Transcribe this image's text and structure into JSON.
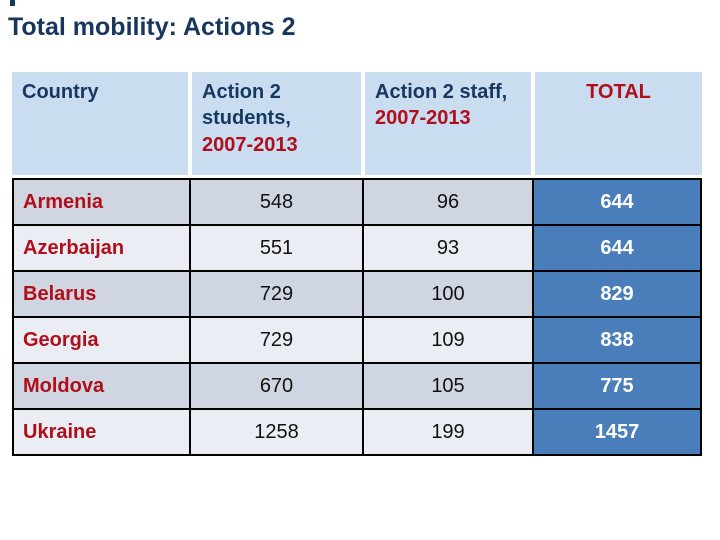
{
  "title": "Total mobility: Actions 2",
  "colors": {
    "title_navy": "#17375E",
    "accent_red": "#B00F1A",
    "header_bg": "#C9DCF0",
    "band_dark": "#CFD5E1",
    "band_light": "#EAEEF4",
    "total_blue": "#4A7EBB",
    "grid_border": "#000000"
  },
  "table": {
    "columns": [
      {
        "id": "country",
        "label": "Country",
        "period": ""
      },
      {
        "id": "students",
        "label": "Action 2 students,",
        "period": "2007-2013"
      },
      {
        "id": "staff",
        "label": "Action 2 staff,",
        "period": "2007-2013"
      },
      {
        "id": "total",
        "label": "TOTAL",
        "period": ""
      }
    ],
    "rows": [
      {
        "country": "Armenia",
        "students": "548",
        "staff": "96",
        "total": "644"
      },
      {
        "country": "Azerbaijan",
        "students": "551",
        "staff": "93",
        "total": "644"
      },
      {
        "country": "Belarus",
        "students": "729",
        "staff": "100",
        "total": "829"
      },
      {
        "country": "Georgia",
        "students": "729",
        "staff": "109",
        "total": "838"
      },
      {
        "country": "Moldova",
        "students": "670",
        "staff": "105",
        "total": "775"
      },
      {
        "country": "Ukraine",
        "students": "1258",
        "staff": "199",
        "total": "1457"
      }
    ]
  }
}
